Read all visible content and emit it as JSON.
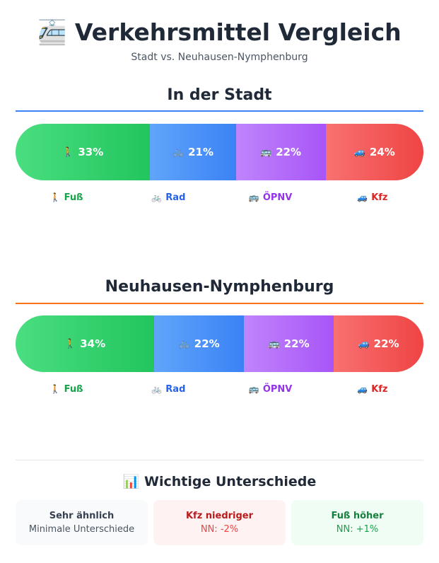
{
  "header": {
    "icon": "🚈",
    "title": "Verkehrsmittel Vergleich",
    "subtitle": "Stadt vs. Neuhausen-Nymphenburg"
  },
  "chart_data": [
    {
      "type": "bar",
      "orientation": "horizontal-stacked",
      "title": "In der Stadt",
      "accent": "#3b82f6",
      "categories": [
        "Fuß",
        "Rad",
        "ÖPNV",
        "Kfz"
      ],
      "values": [
        33,
        21,
        22,
        24
      ],
      "labels": [
        "33%",
        "21%",
        "22%",
        "24%"
      ]
    },
    {
      "type": "bar",
      "orientation": "horizontal-stacked",
      "title": "Neuhausen-Nymphenburg",
      "accent": "#f97316",
      "categories": [
        "Fuß",
        "Rad",
        "ÖPNV",
        "Kfz"
      ],
      "values": [
        34,
        22,
        22,
        22
      ],
      "labels": [
        "34%",
        "22%",
        "22%",
        "22%"
      ]
    }
  ],
  "modes": [
    {
      "name": "Fuß",
      "icon": "🚶",
      "from": "#4ade80",
      "to": "#22c55e",
      "text": "#16a34a"
    },
    {
      "name": "Rad",
      "icon": "🚲",
      "from": "#60a5fa",
      "to": "#3b82f6",
      "text": "#2563eb"
    },
    {
      "name": "ÖPNV",
      "icon": "🚌",
      "from": "#c084fc",
      "to": "#a855f7",
      "text": "#9333ea"
    },
    {
      "name": "Kfz",
      "icon": "🚙",
      "from": "#f87171",
      "to": "#ef4444",
      "text": "#dc2626"
    }
  ],
  "differences": {
    "icon": "📊",
    "title": "Wichtige Unterschiede",
    "cards": [
      {
        "title": "Sehr ähnlich",
        "text": "Minimale Unterschiede",
        "bg": "#f9fafb",
        "tc": "#374151",
        "sc": "#4b5563"
      },
      {
        "title": "Kfz niedriger",
        "text": "NN: -2%",
        "bg": "#fef2f2",
        "tc": "#b91c1c",
        "sc": "#ef4444"
      },
      {
        "title": "Fuß höher",
        "text": "NN: +1%",
        "bg": "#f0fdf4",
        "tc": "#15803d",
        "sc": "#16a34a"
      }
    ]
  }
}
